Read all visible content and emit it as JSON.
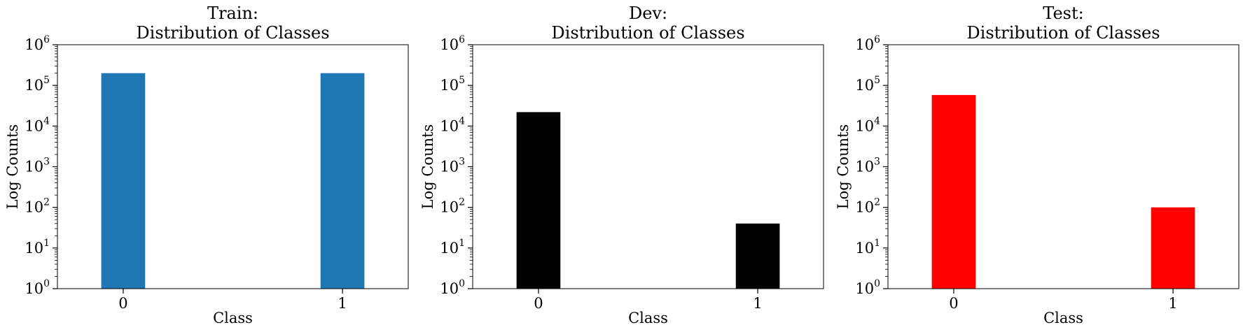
{
  "chart_data": [
    {
      "type": "bar",
      "title_line1": "Train:",
      "title_line2": "Distribution of Classes",
      "xlabel": "Class",
      "ylabel": "Log Counts",
      "yscale": "log",
      "ylim": [
        1,
        1000000
      ],
      "categories": [
        "0",
        "1"
      ],
      "values": [
        200000,
        200000
      ],
      "color": "#1f77b4",
      "y_ticks": [
        {
          "base": "10",
          "exp": "0"
        },
        {
          "base": "10",
          "exp": "1"
        },
        {
          "base": "10",
          "exp": "2"
        },
        {
          "base": "10",
          "exp": "3"
        },
        {
          "base": "10",
          "exp": "4"
        },
        {
          "base": "10",
          "exp": "5"
        },
        {
          "base": "10",
          "exp": "6"
        }
      ]
    },
    {
      "type": "bar",
      "title_line1": "Dev:",
      "title_line2": "Distribution of Classes",
      "xlabel": "Class",
      "ylabel": "Log Counts",
      "yscale": "log",
      "ylim": [
        1,
        1000000
      ],
      "categories": [
        "0",
        "1"
      ],
      "values": [
        22000,
        40
      ],
      "color": "#000000",
      "y_ticks": [
        {
          "base": "10",
          "exp": "0"
        },
        {
          "base": "10",
          "exp": "1"
        },
        {
          "base": "10",
          "exp": "2"
        },
        {
          "base": "10",
          "exp": "3"
        },
        {
          "base": "10",
          "exp": "4"
        },
        {
          "base": "10",
          "exp": "5"
        },
        {
          "base": "10",
          "exp": "6"
        }
      ]
    },
    {
      "type": "bar",
      "title_line1": "Test:",
      "title_line2": "Distribution of Classes",
      "xlabel": "Class",
      "ylabel": "Log Counts",
      "yscale": "log",
      "ylim": [
        1,
        1000000
      ],
      "categories": [
        "0",
        "1"
      ],
      "values": [
        58000,
        100
      ],
      "color": "#ff0000",
      "y_ticks": [
        {
          "base": "10",
          "exp": "0"
        },
        {
          "base": "10",
          "exp": "1"
        },
        {
          "base": "10",
          "exp": "2"
        },
        {
          "base": "10",
          "exp": "3"
        },
        {
          "base": "10",
          "exp": "4"
        },
        {
          "base": "10",
          "exp": "5"
        },
        {
          "base": "10",
          "exp": "6"
        }
      ]
    }
  ]
}
